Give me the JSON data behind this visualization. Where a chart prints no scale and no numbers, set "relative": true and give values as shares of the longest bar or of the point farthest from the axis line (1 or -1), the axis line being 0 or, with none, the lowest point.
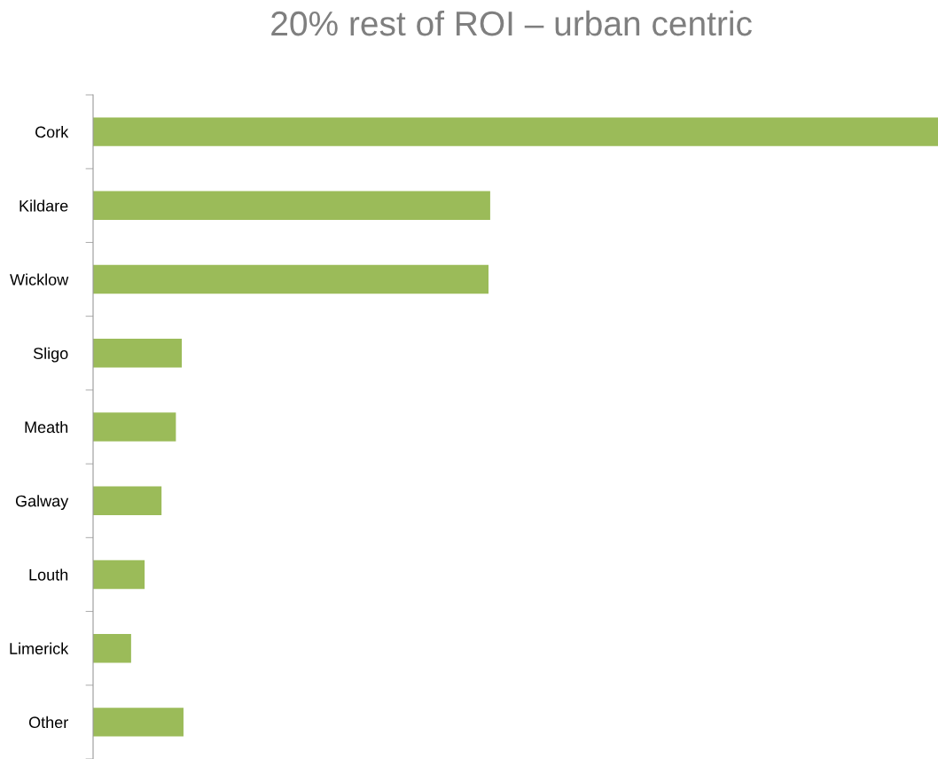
{
  "chart_data": {
    "type": "bar",
    "orientation": "horizontal",
    "relative": true,
    "title": "20% rest of ROI – urban centric",
    "categories": [
      "Cork",
      "Kildare",
      "Wicklow",
      "Sligo",
      "Meath",
      "Galway",
      "Louth",
      "Limerick",
      "Other"
    ],
    "values": [
      1,
      0.47,
      0.468,
      0.105,
      0.098,
      0.081,
      0.061,
      0.045,
      0.107
    ],
    "color": "#9bbb59",
    "grid": false,
    "legend": false
  }
}
